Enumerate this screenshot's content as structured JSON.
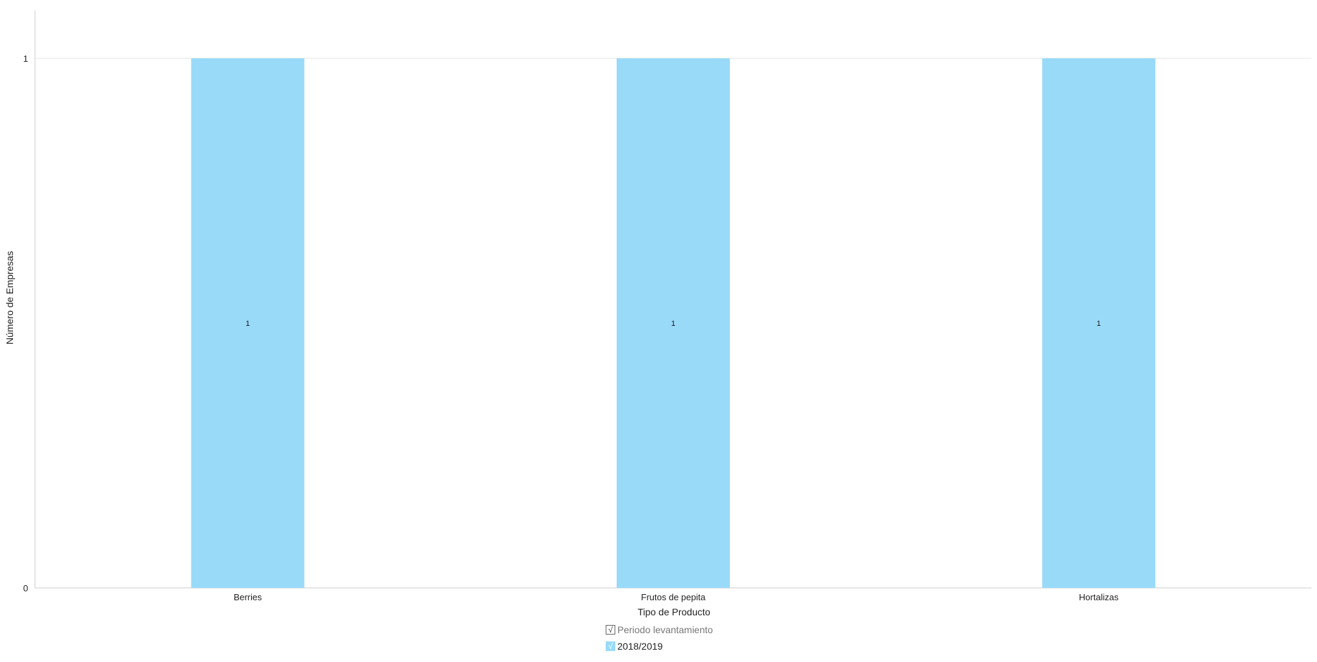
{
  "chart_data": {
    "type": "bar",
    "categories": [
      "Berries",
      "Frutos de pepita",
      "Hortalizas"
    ],
    "series": [
      {
        "name": "2018/2019",
        "values": [
          1,
          1,
          1
        ],
        "color": "#99daf9"
      }
    ],
    "data_labels": [
      "1",
      "1",
      "1"
    ],
    "xlabel": "Tipo de Producto",
    "ylabel": "Número de Empresas",
    "ylim": [
      0,
      1
    ],
    "yticks": [
      "0",
      "1"
    ],
    "grid": true,
    "legend_position": "bottom-center"
  },
  "legend": {
    "header": "Periodo levantamiento",
    "header_check": "√",
    "item_check": "√",
    "items": [
      "2018/2019"
    ]
  },
  "colors": {
    "bar": "#99daf9",
    "axis": "#cccccc",
    "grid": "#e6e6e6"
  }
}
